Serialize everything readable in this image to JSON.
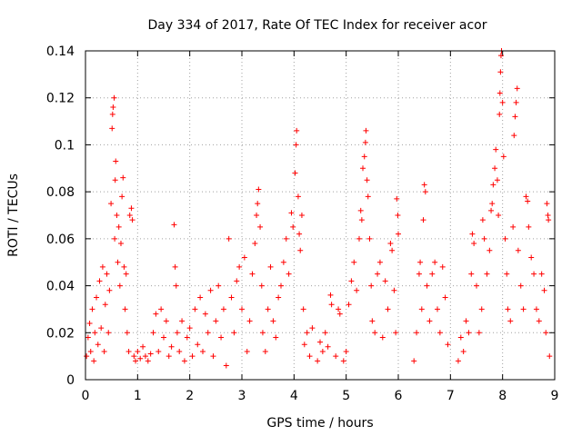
{
  "chart_data": {
    "type": "scatter",
    "title": "Day 334 of 2017, Rate Of TEC Index for receiver acor",
    "xlabel": "GPS time / hours",
    "ylabel": "ROTI / TECUs",
    "xlim": [
      0,
      9
    ],
    "ylim": [
      0,
      0.14
    ],
    "x_ticks": [
      "0",
      "1",
      "2",
      "3",
      "4",
      "5",
      "6",
      "7",
      "8",
      "9"
    ],
    "y_ticks": [
      "0",
      "0.02",
      "0.04",
      "0.06",
      "0.08",
      "0.1",
      "0.12",
      "0.14"
    ],
    "grid": true,
    "marker": "plus",
    "color": "#ff0000",
    "series": [
      {
        "points": [
          [
            0.02,
            0.01
          ],
          [
            0.05,
            0.018
          ],
          [
            0.08,
            0.024
          ],
          [
            0.1,
            0.012
          ],
          [
            0.13,
            0.03
          ],
          [
            0.16,
            0.008
          ],
          [
            0.18,
            0.02
          ],
          [
            0.21,
            0.035
          ],
          [
            0.24,
            0.015
          ],
          [
            0.27,
            0.042
          ],
          [
            0.3,
            0.022
          ],
          [
            0.33,
            0.048
          ],
          [
            0.36,
            0.012
          ],
          [
            0.38,
            0.032
          ],
          [
            0.41,
            0.045
          ],
          [
            0.44,
            0.02
          ],
          [
            0.46,
            0.038
          ],
          [
            0.49,
            0.075
          ],
          [
            0.51,
            0.107
          ],
          [
            0.52,
            0.113
          ],
          [
            0.53,
            0.116
          ],
          [
            0.55,
            0.12
          ],
          [
            0.56,
            0.06
          ],
          [
            0.57,
            0.085
          ],
          [
            0.58,
            0.093
          ],
          [
            0.6,
            0.07
          ],
          [
            0.62,
            0.05
          ],
          [
            0.64,
            0.065
          ],
          [
            0.66,
            0.04
          ],
          [
            0.68,
            0.058
          ],
          [
            0.7,
            0.078
          ],
          [
            0.72,
            0.086
          ],
          [
            0.74,
            0.048
          ],
          [
            0.76,
            0.03
          ],
          [
            0.78,
            0.045
          ],
          [
            0.8,
            0.02
          ],
          [
            0.83,
            0.012
          ],
          [
            0.85,
            0.07
          ],
          [
            0.88,
            0.073
          ],
          [
            0.9,
            0.068
          ],
          [
            0.93,
            0.01
          ],
          [
            0.96,
            0.008
          ],
          [
            1.0,
            0.012
          ],
          [
            1.05,
            0.009
          ],
          [
            1.1,
            0.014
          ],
          [
            1.15,
            0.01
          ],
          [
            1.2,
            0.008
          ],
          [
            1.25,
            0.011
          ],
          [
            1.3,
            0.02
          ],
          [
            1.35,
            0.028
          ],
          [
            1.4,
            0.012
          ],
          [
            1.45,
            0.03
          ],
          [
            1.5,
            0.018
          ],
          [
            1.55,
            0.025
          ],
          [
            1.6,
            0.01
          ],
          [
            1.65,
            0.014
          ],
          [
            1.7,
            0.066
          ],
          [
            1.72,
            0.048
          ],
          [
            1.74,
            0.04
          ],
          [
            1.76,
            0.02
          ],
          [
            1.8,
            0.012
          ],
          [
            1.85,
            0.025
          ],
          [
            1.9,
            0.008
          ],
          [
            1.95,
            0.018
          ],
          [
            2.0,
            0.022
          ],
          [
            2.05,
            0.01
          ],
          [
            2.1,
            0.03
          ],
          [
            2.15,
            0.015
          ],
          [
            2.2,
            0.035
          ],
          [
            2.25,
            0.012
          ],
          [
            2.3,
            0.028
          ],
          [
            2.35,
            0.02
          ],
          [
            2.4,
            0.038
          ],
          [
            2.45,
            0.01
          ],
          [
            2.5,
            0.025
          ],
          [
            2.55,
            0.04
          ],
          [
            2.6,
            0.018
          ],
          [
            2.65,
            0.03
          ],
          [
            2.7,
            0.006
          ],
          [
            2.75,
            0.06
          ],
          [
            2.8,
            0.035
          ],
          [
            2.85,
            0.02
          ],
          [
            2.9,
            0.042
          ],
          [
            2.95,
            0.048
          ],
          [
            3.0,
            0.03
          ],
          [
            3.05,
            0.052
          ],
          [
            3.1,
            0.012
          ],
          [
            3.15,
            0.025
          ],
          [
            3.2,
            0.045
          ],
          [
            3.25,
            0.058
          ],
          [
            3.28,
            0.07
          ],
          [
            3.3,
            0.075
          ],
          [
            3.32,
            0.081
          ],
          [
            3.35,
            0.065
          ],
          [
            3.38,
            0.04
          ],
          [
            3.4,
            0.02
          ],
          [
            3.45,
            0.012
          ],
          [
            3.5,
            0.03
          ],
          [
            3.55,
            0.048
          ],
          [
            3.6,
            0.025
          ],
          [
            3.65,
            0.018
          ],
          [
            3.7,
            0.035
          ],
          [
            3.75,
            0.04
          ],
          [
            3.8,
            0.05
          ],
          [
            3.85,
            0.06
          ],
          [
            3.9,
            0.045
          ],
          [
            3.95,
            0.071
          ],
          [
            3.98,
            0.065
          ],
          [
            4.02,
            0.088
          ],
          [
            4.04,
            0.1
          ],
          [
            4.05,
            0.106
          ],
          [
            4.08,
            0.078
          ],
          [
            4.1,
            0.062
          ],
          [
            4.12,
            0.055
          ],
          [
            4.15,
            0.07
          ],
          [
            4.18,
            0.03
          ],
          [
            4.2,
            0.015
          ],
          [
            4.25,
            0.02
          ],
          [
            4.3,
            0.01
          ],
          [
            4.35,
            0.022
          ],
          [
            4.45,
            0.008
          ],
          [
            4.5,
            0.016
          ],
          [
            4.55,
            0.012
          ],
          [
            4.6,
            0.02
          ],
          [
            4.65,
            0.014
          ],
          [
            4.7,
            0.036
          ],
          [
            4.72,
            0.032
          ],
          [
            4.8,
            0.01
          ],
          [
            4.85,
            0.03
          ],
          [
            4.88,
            0.028
          ],
          [
            4.95,
            0.008
          ],
          [
            5.0,
            0.012
          ],
          [
            5.05,
            0.032
          ],
          [
            5.1,
            0.042
          ],
          [
            5.15,
            0.05
          ],
          [
            5.2,
            0.038
          ],
          [
            5.25,
            0.06
          ],
          [
            5.28,
            0.072
          ],
          [
            5.3,
            0.068
          ],
          [
            5.32,
            0.09
          ],
          [
            5.35,
            0.095
          ],
          [
            5.37,
            0.101
          ],
          [
            5.38,
            0.106
          ],
          [
            5.4,
            0.085
          ],
          [
            5.42,
            0.078
          ],
          [
            5.45,
            0.06
          ],
          [
            5.48,
            0.04
          ],
          [
            5.5,
            0.025
          ],
          [
            5.55,
            0.02
          ],
          [
            5.6,
            0.045
          ],
          [
            5.65,
            0.05
          ],
          [
            5.7,
            0.018
          ],
          [
            5.75,
            0.042
          ],
          [
            5.8,
            0.03
          ],
          [
            5.85,
            0.058
          ],
          [
            5.88,
            0.055
          ],
          [
            5.92,
            0.038
          ],
          [
            5.95,
            0.02
          ],
          [
            5.97,
            0.077
          ],
          [
            5.99,
            0.07
          ],
          [
            6.0,
            0.062
          ],
          [
            6.3,
            0.008
          ],
          [
            6.35,
            0.02
          ],
          [
            6.4,
            0.045
          ],
          [
            6.42,
            0.05
          ],
          [
            6.45,
            0.03
          ],
          [
            6.48,
            0.068
          ],
          [
            6.5,
            0.083
          ],
          [
            6.52,
            0.08
          ],
          [
            6.55,
            0.04
          ],
          [
            6.6,
            0.025
          ],
          [
            6.65,
            0.045
          ],
          [
            6.7,
            0.05
          ],
          [
            6.75,
            0.03
          ],
          [
            6.8,
            0.02
          ],
          [
            6.85,
            0.048
          ],
          [
            6.9,
            0.035
          ],
          [
            6.95,
            0.015
          ],
          [
            7.15,
            0.008
          ],
          [
            7.2,
            0.018
          ],
          [
            7.25,
            0.012
          ],
          [
            7.3,
            0.025
          ],
          [
            7.35,
            0.02
          ],
          [
            7.4,
            0.045
          ],
          [
            7.42,
            0.062
          ],
          [
            7.45,
            0.058
          ],
          [
            7.5,
            0.04
          ],
          [
            7.55,
            0.02
          ],
          [
            7.6,
            0.03
          ],
          [
            7.62,
            0.068
          ],
          [
            7.65,
            0.06
          ],
          [
            7.7,
            0.045
          ],
          [
            7.75,
            0.055
          ],
          [
            7.78,
            0.072
          ],
          [
            7.8,
            0.075
          ],
          [
            7.82,
            0.083
          ],
          [
            7.85,
            0.09
          ],
          [
            7.87,
            0.098
          ],
          [
            7.9,
            0.085
          ],
          [
            7.92,
            0.07
          ],
          [
            7.94,
            0.113
          ],
          [
            7.95,
            0.122
          ],
          [
            7.96,
            0.131
          ],
          [
            7.97,
            0.138
          ],
          [
            7.98,
            0.14
          ],
          [
            8.0,
            0.118
          ],
          [
            8.02,
            0.095
          ],
          [
            8.05,
            0.06
          ],
          [
            8.08,
            0.045
          ],
          [
            8.1,
            0.03
          ],
          [
            8.15,
            0.025
          ],
          [
            8.2,
            0.065
          ],
          [
            8.22,
            0.104
          ],
          [
            8.24,
            0.112
          ],
          [
            8.26,
            0.118
          ],
          [
            8.28,
            0.124
          ],
          [
            8.3,
            0.055
          ],
          [
            8.35,
            0.04
          ],
          [
            8.4,
            0.03
          ],
          [
            8.45,
            0.078
          ],
          [
            8.48,
            0.076
          ],
          [
            8.5,
            0.065
          ],
          [
            8.55,
            0.052
          ],
          [
            8.6,
            0.045
          ],
          [
            8.65,
            0.03
          ],
          [
            8.7,
            0.025
          ],
          [
            8.75,
            0.045
          ],
          [
            8.8,
            0.038
          ],
          [
            8.83,
            0.02
          ],
          [
            8.85,
            0.075
          ],
          [
            8.87,
            0.07
          ],
          [
            8.88,
            0.068
          ],
          [
            8.9,
            0.01
          ]
        ]
      }
    ]
  }
}
